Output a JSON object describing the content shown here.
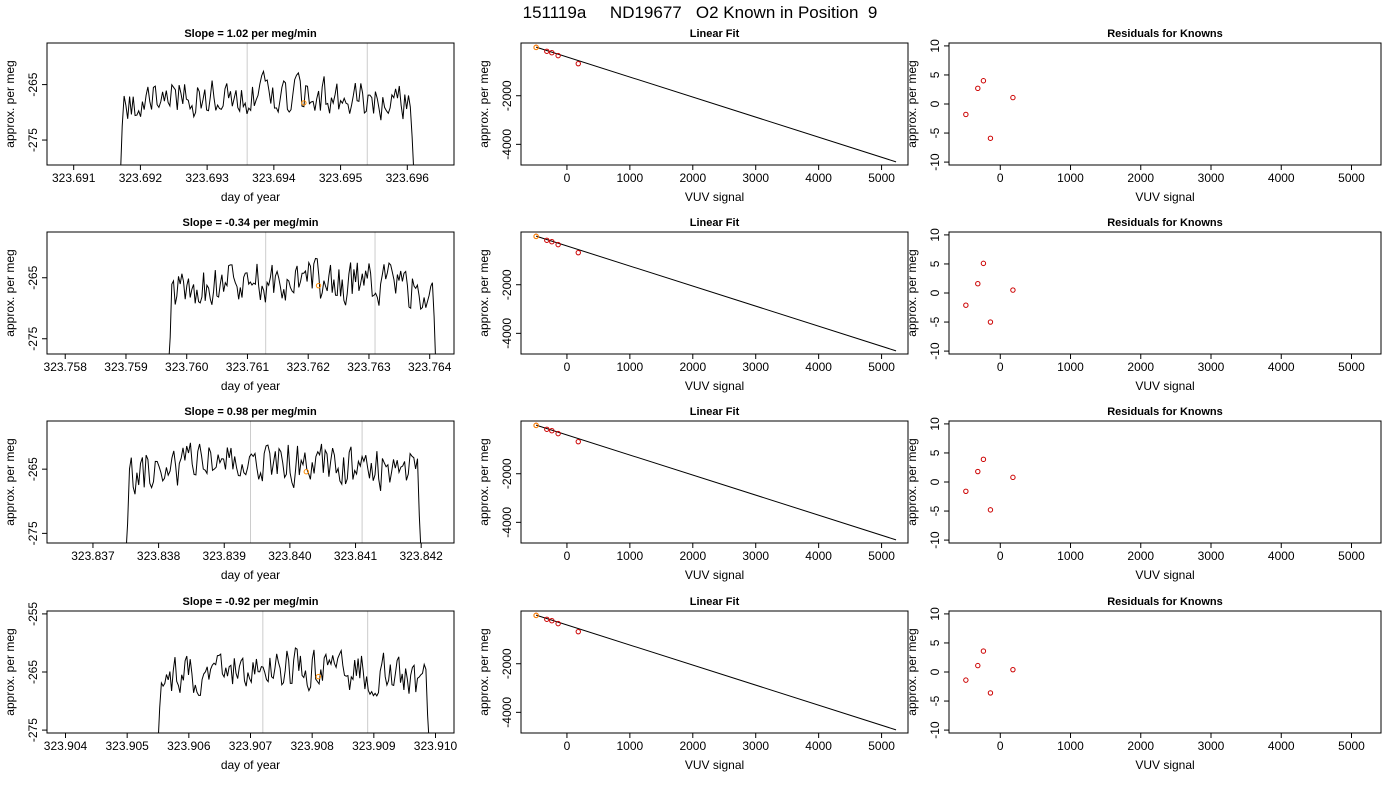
{
  "title": "151119a     ND19677   O2 Known in Position  9",
  "colors": {
    "line": "#000000",
    "marker_known": "#cc0000",
    "marker_ref": "#ff8c00",
    "vline": "#cccccc"
  },
  "chart_data": [
    {
      "type": "line",
      "title": "Slope =  1.02  per meg/min",
      "xlabel": "day of year",
      "ylabel": "approx. per meg",
      "xlim": [
        323.6906,
        323.6967
      ],
      "ylim": [
        -279.5,
        -257.5
      ],
      "xticks": [
        "323.691",
        "323.692",
        "323.693",
        "323.694",
        "323.695",
        "323.696"
      ],
      "yticks": [
        "-265",
        "-275"
      ],
      "trace": {
        "x_start": 323.6917,
        "x_end": 323.6961,
        "base": -268.5,
        "seed": 3
      },
      "vlines": [
        323.6936,
        323.6954
      ],
      "marker": {
        "x": 323.69445,
        "y": -268.3
      }
    },
    {
      "type": "scatter",
      "title": "Linear Fit",
      "xlabel": "VUV signal",
      "ylabel": "approx. per meg",
      "xlim": [
        -730,
        5420
      ],
      "ylim": [
        -4850,
        170
      ],
      "xticks": [
        "0",
        "1000",
        "2000",
        "3000",
        "4000",
        "5000"
      ],
      "yticks": [
        "-2000",
        "-4000"
      ],
      "points": [
        [
          -490,
          -10
        ],
        [
          -320,
          -170
        ],
        [
          -240,
          -230
        ],
        [
          -140,
          -350
        ],
        [
          180,
          -680
        ]
      ],
      "ref_point": [
        -490,
        -10
      ],
      "fit_line": [
        [
          -490,
          0
        ],
        [
          5230,
          -4720
        ]
      ]
    },
    {
      "type": "scatter",
      "title": "Residuals for Knowns",
      "xlabel": "VUV signal",
      "ylabel": "approx. per meg",
      "xlim": [
        -730,
        5420
      ],
      "ylim": [
        -10.5,
        10.5
      ],
      "xticks": [
        "0",
        "1000",
        "2000",
        "3000",
        "4000",
        "5000"
      ],
      "yticks": [
        "-10",
        "-5",
        "0",
        "5",
        "10"
      ],
      "points": [
        [
          -490,
          -1.8
        ],
        [
          -320,
          2.7
        ],
        [
          -240,
          4.0
        ],
        [
          -140,
          -5.9
        ],
        [
          180,
          1.1
        ]
      ]
    },
    {
      "type": "line",
      "title": "Slope =  -0.34  per meg/min",
      "xlabel": "day of year",
      "ylabel": "approx. per meg",
      "xlim": [
        323.7577,
        323.7644
      ],
      "ylim": [
        -277.5,
        -257.5
      ],
      "xticks": [
        "323.758",
        "323.759",
        "323.760",
        "323.761",
        "323.762",
        "323.763",
        "323.764"
      ],
      "yticks": [
        "-265",
        "-275"
      ],
      "trace": {
        "x_start": 323.7597,
        "x_end": 323.7641,
        "base": -267.2,
        "seed": 7
      },
      "vlines": [
        323.7613,
        323.7631
      ],
      "marker": {
        "x": 323.76217,
        "y": -266.3
      }
    },
    {
      "type": "scatter",
      "title": "Linear Fit",
      "xlabel": "VUV signal",
      "ylabel": "approx. per meg",
      "xlim": [
        -730,
        5420
      ],
      "ylim": [
        -4850,
        170
      ],
      "xticks": [
        "0",
        "1000",
        "2000",
        "3000",
        "4000",
        "5000"
      ],
      "yticks": [
        "-2000",
        "-4000"
      ],
      "points": [
        [
          -490,
          -10
        ],
        [
          -320,
          -170
        ],
        [
          -240,
          -230
        ],
        [
          -140,
          -350
        ],
        [
          180,
          -680
        ]
      ],
      "ref_point": [
        -490,
        -10
      ],
      "fit_line": [
        [
          -490,
          0
        ],
        [
          5230,
          -4720
        ]
      ]
    },
    {
      "type": "scatter",
      "title": "Residuals for Knowns",
      "xlabel": "VUV signal",
      "ylabel": "approx. per meg",
      "xlim": [
        -730,
        5420
      ],
      "ylim": [
        -10.5,
        10.5
      ],
      "xticks": [
        "0",
        "1000",
        "2000",
        "3000",
        "4000",
        "5000"
      ],
      "yticks": [
        "-10",
        "-5",
        "0",
        "5",
        "10"
      ],
      "points": [
        [
          -490,
          -2.1
        ],
        [
          -320,
          1.6
        ],
        [
          -240,
          5.1
        ],
        [
          -140,
          -5.0
        ],
        [
          180,
          0.5
        ]
      ]
    },
    {
      "type": "line",
      "title": "Slope =  0.98  per meg/min",
      "xlabel": "day of year",
      "ylabel": "approx. per meg",
      "xlim": [
        323.8363,
        323.8425
      ],
      "ylim": [
        -276.5,
        -257.5
      ],
      "xticks": [
        "323.837",
        "323.838",
        "323.839",
        "323.840",
        "323.841",
        "323.842"
      ],
      "yticks": [
        "-265",
        "-275"
      ],
      "trace": {
        "x_start": 323.8375,
        "x_end": 323.842,
        "base": -265.8,
        "seed": 11
      },
      "vlines": [
        323.8394,
        323.8411
      ],
      "marker": {
        "x": 323.84025,
        "y": -265.4
      }
    },
    {
      "type": "scatter",
      "title": "Linear Fit",
      "xlabel": "VUV signal",
      "ylabel": "approx. per meg",
      "xlim": [
        -730,
        5420
      ],
      "ylim": [
        -4850,
        170
      ],
      "xticks": [
        "0",
        "1000",
        "2000",
        "3000",
        "4000",
        "5000"
      ],
      "yticks": [
        "-2000",
        "-4000"
      ],
      "points": [
        [
          -490,
          -10
        ],
        [
          -320,
          -170
        ],
        [
          -240,
          -230
        ],
        [
          -140,
          -350
        ],
        [
          180,
          -680
        ]
      ],
      "ref_point": [
        -490,
        -10
      ],
      "fit_line": [
        [
          -490,
          0
        ],
        [
          5230,
          -4720
        ]
      ]
    },
    {
      "type": "scatter",
      "title": "Residuals for Knowns",
      "xlabel": "VUV signal",
      "ylabel": "approx. per meg",
      "xlim": [
        -730,
        5420
      ],
      "ylim": [
        -10.5,
        10.5
      ],
      "xticks": [
        "0",
        "1000",
        "2000",
        "3000",
        "4000",
        "5000"
      ],
      "yticks": [
        "-10",
        "-5",
        "0",
        "5",
        "10"
      ],
      "points": [
        [
          -490,
          -1.6
        ],
        [
          -320,
          1.8
        ],
        [
          -240,
          3.9
        ],
        [
          -140,
          -4.8
        ],
        [
          180,
          0.8
        ]
      ]
    },
    {
      "type": "line",
      "title": "Slope =  -0.92  per meg/min",
      "xlabel": "day of year",
      "ylabel": "approx. per meg",
      "xlim": [
        323.9037,
        323.9103
      ],
      "ylim": [
        -275.5,
        -254.5
      ],
      "xticks": [
        "323.904",
        "323.905",
        "323.906",
        "323.907",
        "323.908",
        "323.909",
        "323.910"
      ],
      "yticks": [
        "-255",
        "-265",
        "-275"
      ],
      "trace": {
        "x_start": 323.9055,
        "x_end": 323.9099,
        "base": -266.2,
        "seed": 17
      },
      "vlines": [
        323.9072,
        323.9089
      ],
      "marker": {
        "x": 323.9081,
        "y": -265.8
      }
    },
    {
      "type": "scatter",
      "title": "Linear Fit",
      "xlabel": "VUV signal",
      "ylabel": "approx. per meg",
      "xlim": [
        -730,
        5420
      ],
      "ylim": [
        -4850,
        170
      ],
      "xticks": [
        "0",
        "1000",
        "2000",
        "3000",
        "4000",
        "5000"
      ],
      "yticks": [
        "-2000",
        "-4000"
      ],
      "points": [
        [
          -490,
          -10
        ],
        [
          -320,
          -170
        ],
        [
          -240,
          -230
        ],
        [
          -140,
          -350
        ],
        [
          180,
          -680
        ]
      ],
      "ref_point": [
        -490,
        -10
      ],
      "fit_line": [
        [
          -490,
          0
        ],
        [
          5230,
          -4720
        ]
      ]
    },
    {
      "type": "scatter",
      "title": "Residuals for Knowns",
      "xlabel": "VUV signal",
      "ylabel": "approx. per meg",
      "xlim": [
        -730,
        5420
      ],
      "ylim": [
        -10.5,
        10.5
      ],
      "xticks": [
        "0",
        "1000",
        "2000",
        "3000",
        "4000",
        "5000"
      ],
      "yticks": [
        "-10",
        "-5",
        "0",
        "5",
        "10"
      ],
      "points": [
        [
          -490,
          -1.4
        ],
        [
          -320,
          1.1
        ],
        [
          -240,
          3.6
        ],
        [
          -140,
          -3.6
        ],
        [
          180,
          0.4
        ]
      ]
    }
  ]
}
